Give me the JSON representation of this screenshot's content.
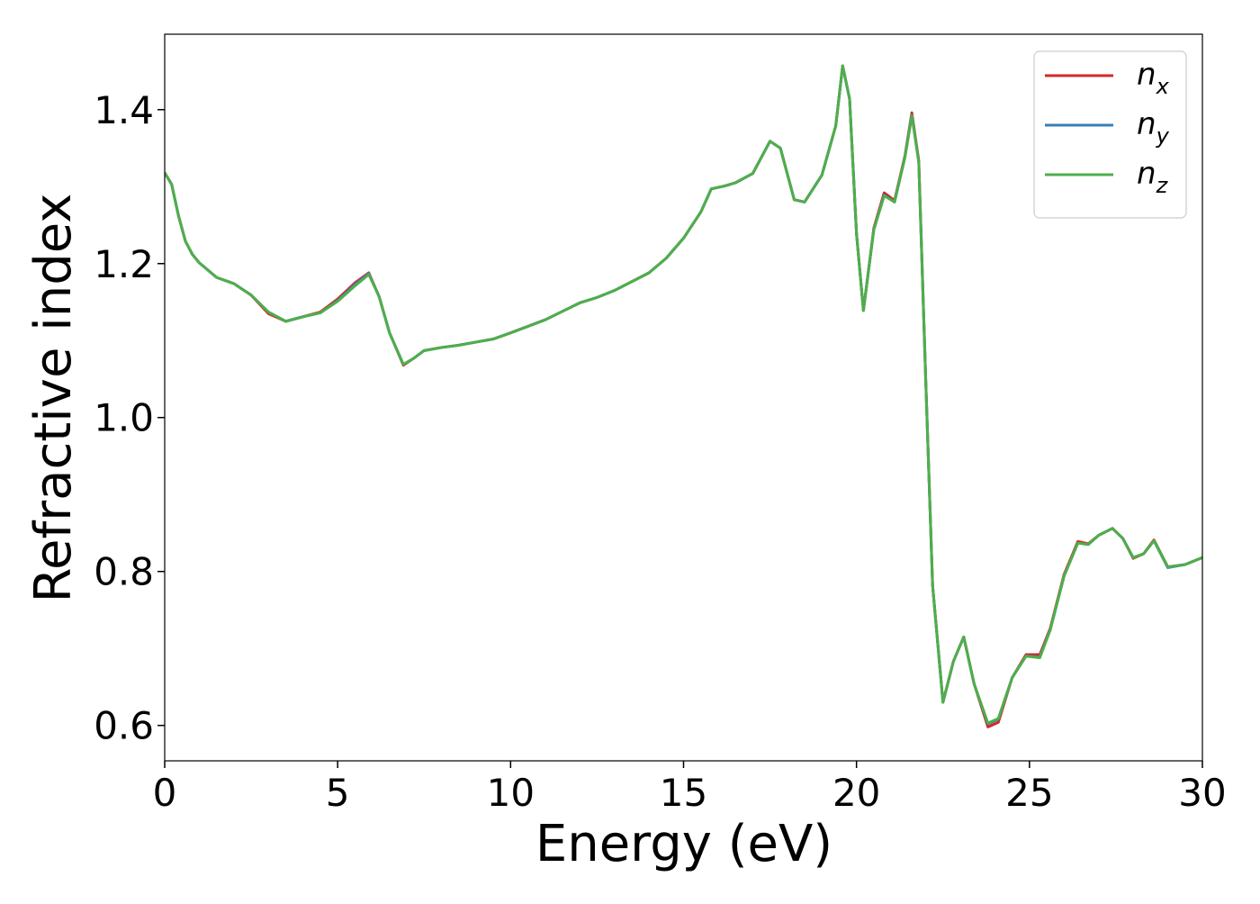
{
  "chart_data": {
    "type": "line",
    "xlabel": "Energy (eV)",
    "ylabel": "Refractive index",
    "x": [
      0,
      0.2,
      0.4,
      0.6,
      0.8,
      1.0,
      1.5,
      2.0,
      2.5,
      3.0,
      3.5,
      4.0,
      4.5,
      5.0,
      5.5,
      5.9,
      6.2,
      6.5,
      6.9,
      7.2,
      7.5,
      8.0,
      8.5,
      9.0,
      9.5,
      10,
      11,
      12,
      12.5,
      13,
      14,
      14.5,
      15,
      15.5,
      15.8,
      16.2,
      16.5,
      17.0,
      17.5,
      17.8,
      18.2,
      18.5,
      19.0,
      19.4,
      19.6,
      19.8,
      20.0,
      20.2,
      20.5,
      20.8,
      21.1,
      21.4,
      21.6,
      21.8,
      22.0,
      22.2,
      22.5,
      22.8,
      23.1,
      23.4,
      23.8,
      24.1,
      24.5,
      24.9,
      25.3,
      25.6,
      26.0,
      26.4,
      26.7,
      27.0,
      27.4,
      27.7,
      28.0,
      28.3,
      28.6,
      29.0,
      29.5,
      30
    ],
    "series": [
      {
        "name": "n_x",
        "color": "#d62728",
        "values": [
          1.318,
          1.303,
          1.262,
          1.229,
          1.212,
          1.201,
          1.182,
          1.174,
          1.159,
          1.135,
          1.125,
          1.131,
          1.137,
          1.154,
          1.175,
          1.188,
          1.157,
          1.11,
          1.068,
          1.077,
          1.087,
          1.091,
          1.094,
          1.098,
          1.102,
          1.11,
          1.127,
          1.149,
          1.156,
          1.165,
          1.188,
          1.207,
          1.233,
          1.267,
          1.297,
          1.301,
          1.305,
          1.317,
          1.359,
          1.35,
          1.283,
          1.28,
          1.315,
          1.379,
          1.457,
          1.414,
          1.239,
          1.139,
          1.246,
          1.292,
          1.282,
          1.34,
          1.396,
          1.334,
          1.051,
          0.782,
          0.63,
          0.683,
          0.715,
          0.654,
          0.598,
          0.604,
          0.662,
          0.692,
          0.692,
          0.726,
          0.796,
          0.839,
          0.836,
          0.847,
          0.856,
          0.843,
          0.817,
          0.823,
          0.841,
          0.806,
          0.809,
          0.818
        ]
      },
      {
        "name": "n_y",
        "color": "#377eb8",
        "values": [
          1.318,
          1.303,
          1.262,
          1.229,
          1.212,
          1.201,
          1.182,
          1.174,
          1.159,
          1.137,
          1.125,
          1.131,
          1.136,
          1.152,
          1.173,
          1.187,
          1.157,
          1.11,
          1.069,
          1.077,
          1.087,
          1.091,
          1.094,
          1.098,
          1.102,
          1.11,
          1.127,
          1.149,
          1.156,
          1.165,
          1.188,
          1.207,
          1.233,
          1.267,
          1.297,
          1.301,
          1.305,
          1.317,
          1.359,
          1.35,
          1.283,
          1.28,
          1.315,
          1.379,
          1.457,
          1.414,
          1.239,
          1.139,
          1.244,
          1.289,
          1.28,
          1.338,
          1.393,
          1.332,
          1.051,
          0.782,
          0.63,
          0.683,
          0.715,
          0.654,
          0.602,
          0.608,
          0.662,
          0.69,
          0.689,
          0.724,
          0.794,
          0.837,
          0.835,
          0.847,
          0.856,
          0.843,
          0.818,
          0.823,
          0.84,
          0.805,
          0.809,
          0.818
        ]
      },
      {
        "name": "n_z",
        "color": "#4daf4a",
        "values": [
          1.318,
          1.303,
          1.262,
          1.229,
          1.212,
          1.201,
          1.182,
          1.174,
          1.159,
          1.137,
          1.125,
          1.131,
          1.136,
          1.151,
          1.171,
          1.186,
          1.157,
          1.11,
          1.069,
          1.077,
          1.087,
          1.091,
          1.094,
          1.098,
          1.102,
          1.11,
          1.127,
          1.149,
          1.156,
          1.165,
          1.188,
          1.207,
          1.233,
          1.267,
          1.297,
          1.301,
          1.305,
          1.317,
          1.359,
          1.35,
          1.283,
          1.28,
          1.315,
          1.379,
          1.457,
          1.414,
          1.239,
          1.139,
          1.244,
          1.288,
          1.28,
          1.338,
          1.392,
          1.332,
          1.051,
          0.782,
          0.63,
          0.683,
          0.715,
          0.654,
          0.603,
          0.609,
          0.662,
          0.69,
          0.688,
          0.724,
          0.794,
          0.837,
          0.835,
          0.847,
          0.856,
          0.843,
          0.818,
          0.823,
          0.84,
          0.806,
          0.809,
          0.818
        ]
      }
    ],
    "xlim": [
      0,
      30
    ],
    "xticks": [
      0,
      5,
      10,
      15,
      20,
      25,
      30
    ],
    "ylim": [
      0.554,
      1.498
    ],
    "yticks": [
      0.6,
      0.8,
      1.0,
      1.2,
      1.4
    ],
    "legend": "upper right"
  }
}
